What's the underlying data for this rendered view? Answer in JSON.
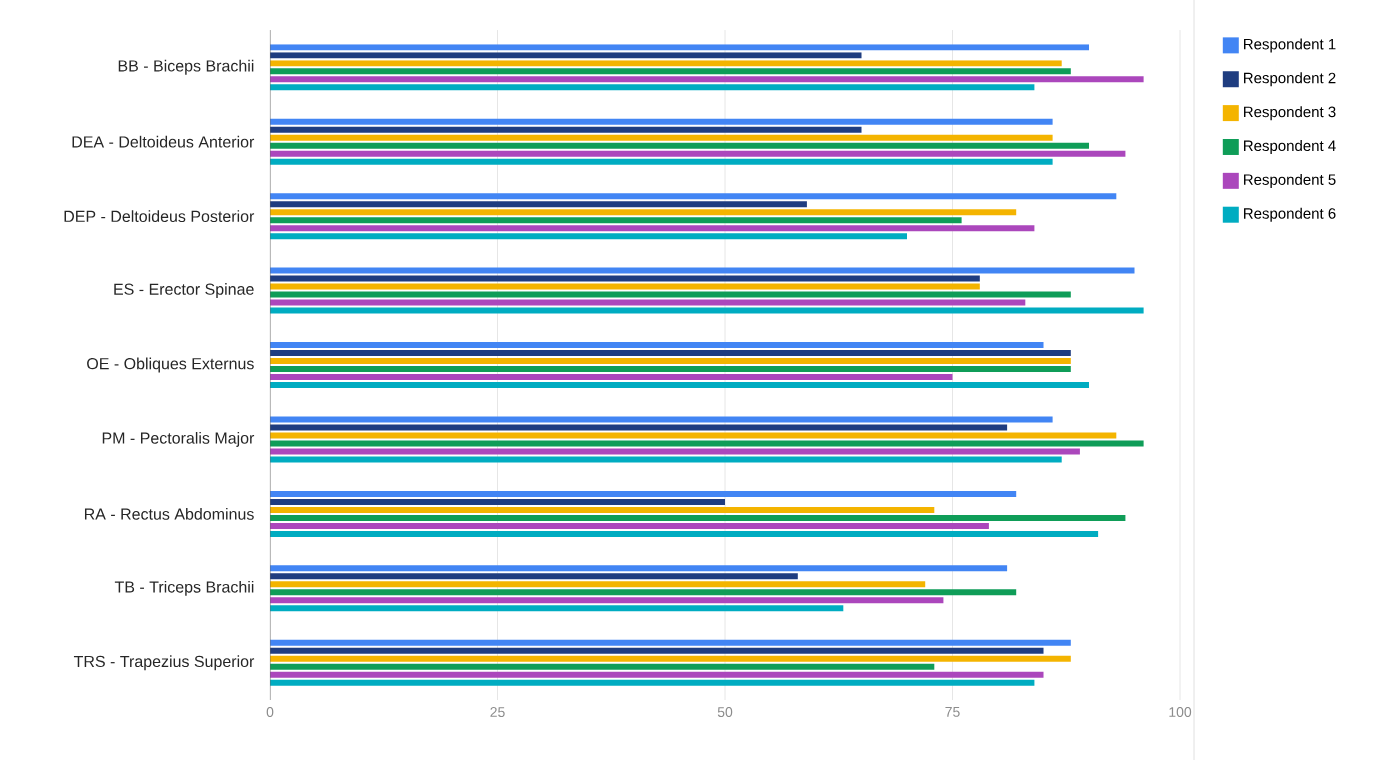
{
  "chart_data": {
    "type": "bar",
    "orientation": "horizontal",
    "categories": [
      "BB - Biceps Brachii",
      "DEA - Deltoideus Anterior",
      "DEP - Deltoideus Posterior",
      "ES - Erector Spinae",
      "OE - Obliques Externus",
      "PM - Pectoralis Major",
      "RA - Rectus Abdominus",
      "TB - Triceps Brachii",
      "TRS - Trapezius Superior"
    ],
    "series": [
      {
        "name": "Respondent 1",
        "color": "#4285f4",
        "values": [
          90,
          86,
          93,
          95,
          85,
          86,
          82,
          81,
          88
        ]
      },
      {
        "name": "Respondent 2",
        "color": "#1f3d80",
        "values": [
          65,
          65,
          59,
          78,
          88,
          81,
          50,
          58,
          85
        ]
      },
      {
        "name": "Respondent 3",
        "color": "#f4b400",
        "values": [
          87,
          86,
          82,
          78,
          88,
          93,
          73,
          72,
          88
        ]
      },
      {
        "name": "Respondent 4",
        "color": "#0f9d58",
        "values": [
          88,
          90,
          76,
          88,
          88,
          96,
          94,
          82,
          73
        ]
      },
      {
        "name": "Respondent 5",
        "color": "#ab47bc",
        "values": [
          96,
          94,
          84,
          83,
          75,
          89,
          79,
          74,
          85
        ]
      },
      {
        "name": "Respondent 6",
        "color": "#00acc1",
        "values": [
          84,
          86,
          70,
          96,
          90,
          87,
          91,
          63,
          84
        ]
      }
    ],
    "xlim": [
      0,
      100
    ],
    "xticks": [
      0,
      25,
      50,
      75,
      100
    ],
    "grid": "x",
    "legend": "top right"
  }
}
